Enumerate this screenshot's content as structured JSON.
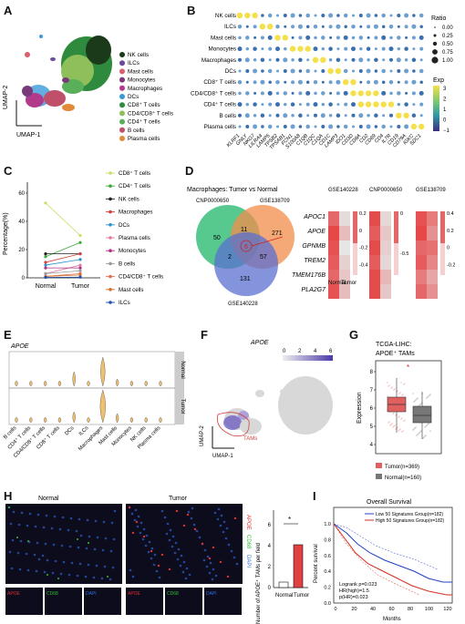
{
  "panels": {
    "A": "A",
    "B": "B",
    "C": "C",
    "D": "D",
    "E": "E",
    "F": "F",
    "G": "G",
    "H": "H",
    "I": "I"
  },
  "cell_types": [
    "NK cells",
    "ILCs",
    "Mast cells",
    "Monocytes",
    "Macrophages",
    "DCs",
    "CD8⁺ T cells",
    "CD4/CD8⁺ T cells",
    "CD4⁺ T cells",
    "B cells",
    "Plasma cells"
  ],
  "colors": {
    "nk": "#1a3a1a",
    "ilc": "#6b4a9a",
    "mast": "#d95f6b",
    "mono": "#7a3a7a",
    "mac": "#b23a8a",
    "dc": "#3a9ad9",
    "cd8": "#2e8b3e",
    "cd48": "#8fbf5a",
    "cd4": "#5ab05a",
    "b": "#c0506a",
    "plasma": "#e08a3a"
  },
  "panelA": {
    "umap2": "UMAP-2",
    "umap1": "UMAP-1"
  },
  "panelB": {
    "genes": [
      "KLRF1",
      "GNLY",
      "NKG7",
      "LILRA4",
      "LAMP5",
      "TPSB2",
      "TPSAB1",
      "FCN1",
      "S100A8",
      "C1QB",
      "C1QC",
      "C1QA",
      "CD1C",
      "LAMP3",
      "IDO1",
      "CD3D",
      "CD8A",
      "CD2",
      "CD69",
      "CD4",
      "IL7R",
      "CD19",
      "CD79A",
      "IGKC",
      "SDC1"
    ],
    "legend_ratio": "Ratio",
    "ratio_ticks": [
      "0.00",
      "0.25",
      "0.50",
      "0.75",
      "1.00"
    ],
    "legend_exp": "Exp",
    "exp_ticks": [
      "3",
      "2",
      "1",
      "0",
      "−1"
    ]
  },
  "panelC": {
    "ylabel": "Percentage(%)",
    "categories": [
      "Normal",
      "Tumor"
    ],
    "yticks": [
      "0",
      "20",
      "40",
      "60"
    ],
    "legend": [
      "CD8⁺ T cells",
      "CD4⁺ T cells",
      "NK cells",
      "Macrophages",
      "DCs",
      "Plasma cells",
      "Monocytes",
      "B cells",
      "CD4/CD8⁺ T cells",
      "Mast cells",
      "ILCs"
    ]
  },
  "panelD": {
    "title": "Macrophages: Tumor vs Normal",
    "sets": [
      "CNP0000650",
      "GSE138709",
      "GSE140228"
    ],
    "venn": {
      "a_only": "50",
      "b_only": "271",
      "c_only": "131",
      "ab": "11",
      "ac": "2",
      "bc": "57",
      "abc": "6"
    },
    "genes": [
      "APOC1",
      "APOE",
      "GPNMB",
      "TREM2",
      "TMEM176B",
      "PLA2G7"
    ],
    "heatmaps": [
      {
        "title": "GSE140228",
        "ticks": [
          "0.2",
          "0",
          "-0.2",
          "-0.4"
        ]
      },
      {
        "title": "CNP0000650",
        "ticks": [
          "0",
          "-0.5"
        ]
      },
      {
        "title": "GSE138709",
        "ticks": [
          "0.4",
          "0.2",
          "0",
          "-0.2"
        ]
      }
    ],
    "xcats": [
      "Normal",
      "Tumor"
    ]
  },
  "panelE": {
    "gene": "APOE",
    "strips": [
      "Normal",
      "Tumor"
    ],
    "xcats": [
      "B cells",
      "CD4⁺ T cells",
      "CD4/CD8⁺ T cells",
      "CD8⁺ T cells",
      "DCs",
      "ILCs",
      "Macrophages",
      "Mast cells",
      "Monocytes",
      "NK cells",
      "Plasma cells"
    ]
  },
  "panelF": {
    "gene": "APOE",
    "scale": [
      "0",
      "2",
      "4",
      "6"
    ],
    "tams": "TAMs",
    "umap2": "UMAP-2",
    "umap1": "UMAP-1"
  },
  "panelG": {
    "title1": "TCGA-LIHC:",
    "title2": "APOE⁺ TAMs",
    "ylabel": "Expression",
    "yticks": [
      "4",
      "5",
      "6",
      "7",
      "8"
    ],
    "star": "*",
    "legend": [
      "Tumor(n=369)",
      "Normal(n=160)"
    ]
  },
  "panelH": {
    "normal": "Normal",
    "tumor": "Tumor",
    "channels": [
      "APOE",
      "CD68",
      "DAPI"
    ],
    "bar_ylabel": "Number of APOE⁺ TAMs per field",
    "bar_yticks": [
      "0",
      "2",
      "4",
      "6"
    ],
    "bar_cats": [
      "Normal",
      "Tumor"
    ],
    "star": "*"
  },
  "panelI": {
    "title": "Overall Survival",
    "legend": [
      "Low 50 Signatures Group(n=182)",
      "High 50 Signatures Group(n=182)"
    ],
    "ylabel": "Percent survival",
    "xlabel": "Months",
    "yticks": [
      "0.0",
      "0.2",
      "0.4",
      "0.6",
      "0.8",
      "1.0"
    ],
    "xticks": [
      "0",
      "20",
      "40",
      "60",
      "80",
      "100",
      "120"
    ],
    "stats": [
      "Logrank p=0.023",
      "HR(high)=1.5",
      "p(HR)=0.023"
    ]
  }
}
